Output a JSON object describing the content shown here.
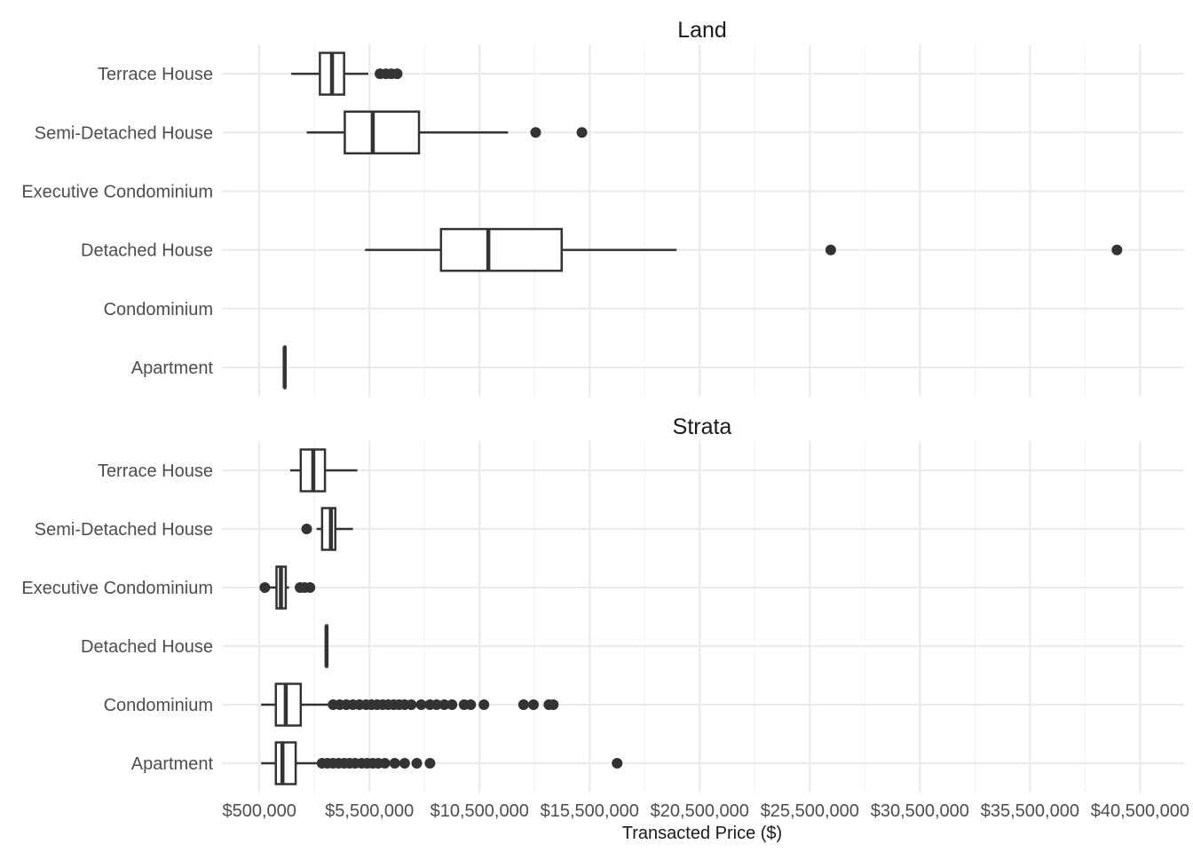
{
  "chart_data": {
    "type": "boxplot",
    "orientation": "horizontal",
    "xlabel": "Transacted Price ($)",
    "xlim": [
      -1200000,
      42500000
    ],
    "x_ticks": [
      500000,
      5500000,
      10500000,
      15500000,
      20500000,
      25500000,
      30500000,
      35500000,
      40500000
    ],
    "x_tick_labels": [
      "$500,000",
      "$5,500,000",
      "$10,500,000",
      "$15,500,000",
      "$20,500,000",
      "$25,500,000",
      "$30,500,000",
      "$35,500,000",
      "$40,500,000"
    ],
    "categories": [
      "Terrace House",
      "Semi-Detached House",
      "Executive Condominium",
      "Detached House",
      "Condominium",
      "Apartment"
    ],
    "panels": [
      {
        "title": "Land",
        "series": [
          {
            "category": "Terrace House",
            "whisker_low": 1950000,
            "q1": 3250000,
            "median": 3800000,
            "q3": 4350000,
            "whisker_high": 5450000,
            "outliers": [
              5980000,
              6250000,
              6500000,
              6760000
            ]
          },
          {
            "category": "Semi-Detached House",
            "whisker_low": 2650000,
            "q1": 4380000,
            "median": 5650000,
            "q3": 7750000,
            "whisker_high": 11800000,
            "outliers": [
              13050000,
              15150000
            ]
          },
          {
            "category": "Executive Condominium"
          },
          {
            "category": "Detached House",
            "whisker_low": 5300000,
            "q1": 8750000,
            "median": 10900000,
            "q3": 14230000,
            "whisker_high": 19450000,
            "outliers": [
              26450000,
              39450000
            ]
          },
          {
            "category": "Condominium"
          },
          {
            "category": "Apartment",
            "whisker_low": 1650000,
            "q1": 1650000,
            "median": 1650000,
            "q3": 1650000,
            "whisker_high": 1650000,
            "outliers": []
          }
        ]
      },
      {
        "title": "Strata",
        "series": [
          {
            "category": "Terrace House",
            "whisker_low": 1900000,
            "q1": 2380000,
            "median": 2950000,
            "q3": 3480000,
            "whisker_high": 4950000,
            "outliers": []
          },
          {
            "category": "Semi-Detached House",
            "whisker_low": 3100000,
            "q1": 3350000,
            "median": 3750000,
            "q3": 3950000,
            "whisker_high": 4750000,
            "outliers": [
              2650000
            ]
          },
          {
            "category": "Executive Condominium",
            "whisker_low": 850000,
            "q1": 1280000,
            "median": 1480000,
            "q3": 1700000,
            "whisker_high": 1850000,
            "outliers": [
              750000,
              2350000,
              2550000,
              2800000
            ]
          },
          {
            "category": "Detached House",
            "whisker_low": 3550000,
            "q1": 3550000,
            "median": 3550000,
            "q3": 3550000,
            "whisker_high": 3550000,
            "outliers": []
          },
          {
            "category": "Condominium",
            "whisker_low": 580000,
            "q1": 1250000,
            "median": 1700000,
            "q3": 2380000,
            "whisker_high": 3750000,
            "outliers": [
              3850000,
              4150000,
              4450000,
              4750000,
              5050000,
              5350000,
              5600000,
              5850000,
              6100000,
              6350000,
              6600000,
              6850000,
              7100000,
              7400000,
              7850000,
              8250000,
              8550000,
              8900000,
              9250000,
              9800000,
              10100000,
              10700000,
              12500000,
              12950000,
              13650000,
              13850000
            ]
          },
          {
            "category": "Apartment",
            "whisker_low": 580000,
            "q1": 1250000,
            "median": 1550000,
            "q3": 2150000,
            "whisker_high": 3200000,
            "outliers": [
              3350000,
              3600000,
              3850000,
              4100000,
              4350000,
              4600000,
              4850000,
              5150000,
              5400000,
              5650000,
              5900000,
              6200000,
              6650000,
              7100000,
              7650000,
              8250000,
              16750000
            ]
          }
        ]
      }
    ]
  }
}
